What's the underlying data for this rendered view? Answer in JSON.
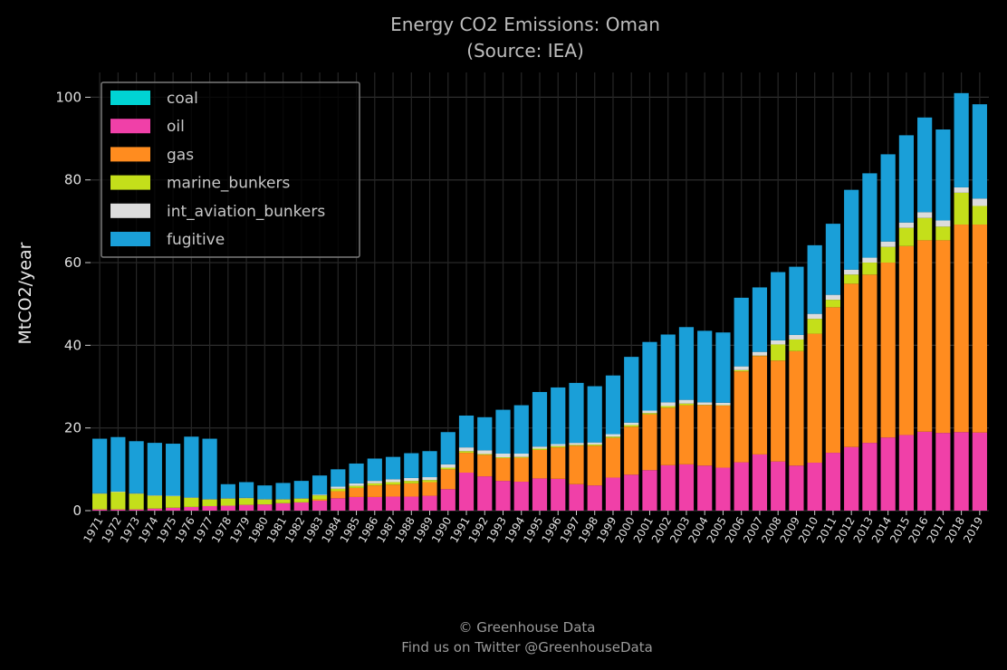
{
  "chart_data": {
    "type": "bar",
    "stacked": true,
    "title": "Energy CO2 Emissions: Oman",
    "subtitle": "(Source: IEA)",
    "xlabel": "",
    "ylabel": "MtCO2/year",
    "ylim": [
      0,
      106
    ],
    "yticks": [
      0,
      20,
      40,
      60,
      80,
      100
    ],
    "grid": true,
    "legend_position": "top-left",
    "categories": [
      "1971",
      "1972",
      "1973",
      "1974",
      "1975",
      "1976",
      "1977",
      "1978",
      "1979",
      "1980",
      "1981",
      "1982",
      "1983",
      "1984",
      "1985",
      "1986",
      "1987",
      "1988",
      "1989",
      "1990",
      "1991",
      "1992",
      "1993",
      "1994",
      "1995",
      "1996",
      "1997",
      "1998",
      "1999",
      "2000",
      "2001",
      "2002",
      "2003",
      "2004",
      "2005",
      "2006",
      "2007",
      "2008",
      "2009",
      "2010",
      "2011",
      "2012",
      "2013",
      "2014",
      "2015",
      "2016",
      "2017",
      "2018",
      "2019"
    ],
    "series": [
      {
        "name": "coal",
        "color": "#00d4d4",
        "values": [
          0,
          0,
          0,
          0,
          0,
          0,
          0,
          0,
          0,
          0,
          0,
          0,
          0,
          0,
          0,
          0,
          0,
          0,
          0,
          0,
          0,
          0,
          0,
          0,
          0,
          0,
          0,
          0,
          0,
          0,
          0,
          0,
          0,
          0,
          0,
          0,
          0,
          0,
          0,
          0,
          0,
          0,
          0,
          0,
          0,
          0,
          0,
          0,
          0
        ]
      },
      {
        "name": "oil",
        "color": "#f040a8",
        "values": [
          0.3,
          0.3,
          0.3,
          0.5,
          0.7,
          0.9,
          1.1,
          1.2,
          1.4,
          1.5,
          1.8,
          2.0,
          2.4,
          3.0,
          3.3,
          3.3,
          3.4,
          3.4,
          3.6,
          5.2,
          9.2,
          8.3,
          7.2,
          7.0,
          7.8,
          7.7,
          6.4,
          6.1,
          8.0,
          8.7,
          9.8,
          11.0,
          11.2,
          10.9,
          10.4,
          11.7,
          13.6,
          11.9,
          10.9,
          11.6,
          14.0,
          15.4,
          16.4,
          17.7,
          18.3,
          19.1,
          18.8,
          19.0,
          18.9
        ]
      },
      {
        "name": "gas",
        "color": "#ff8c1f",
        "values": [
          0,
          0,
          0,
          0,
          0,
          0,
          0,
          0,
          0,
          0,
          0,
          0,
          0.3,
          1.7,
          2.2,
          2.8,
          2.9,
          3.2,
          3.3,
          4.8,
          4.8,
          5.2,
          5.5,
          5.8,
          6.9,
          7.6,
          9.3,
          9.6,
          9.6,
          11.6,
          13.5,
          13.9,
          14.3,
          14.6,
          15.0,
          22.0,
          23.8,
          24.4,
          27.7,
          31.2,
          35.2,
          39.5,
          40.7,
          42.3,
          45.7,
          46.3,
          46.6,
          50.2,
          50.3
        ]
      },
      {
        "name": "marine_bunkers",
        "color": "#c4df1a",
        "values": [
          3.8,
          4.2,
          3.8,
          3.1,
          2.8,
          2.2,
          1.6,
          1.7,
          1.6,
          1.2,
          0.9,
          0.9,
          1.0,
          0.6,
          0.5,
          0.5,
          0.6,
          0.6,
          0.5,
          0.4,
          0.4,
          0.2,
          0.2,
          0.2,
          0.3,
          0.3,
          0.2,
          0.3,
          0.3,
          0.4,
          0.3,
          0.4,
          0.4,
          0.1,
          0.1,
          0.3,
          0.1,
          3.9,
          2.8,
          3.6,
          1.8,
          2.2,
          2.9,
          3.8,
          4.4,
          5.4,
          3.3,
          7.7,
          4.5
        ]
      },
      {
        "name": "int_aviation_bunkers",
        "color": "#dcdcdc",
        "values": [
          0.1,
          0.1,
          0.1,
          0.1,
          0.1,
          0.1,
          0.1,
          0.1,
          0.1,
          0.1,
          0.1,
          0.1,
          0.2,
          0.5,
          0.6,
          0.6,
          0.7,
          0.7,
          0.7,
          0.8,
          0.9,
          0.9,
          0.9,
          0.8,
          0.5,
          0.5,
          0.5,
          0.5,
          0.6,
          0.6,
          0.6,
          0.9,
          0.9,
          0.6,
          0.6,
          0.9,
          0.9,
          1.0,
          1.1,
          1.2,
          1.2,
          1.2,
          1.2,
          1.3,
          1.3,
          1.4,
          1.5,
          1.3,
          1.8
        ]
      },
      {
        "name": "fugitive",
        "color": "#1a9fd8",
        "values": [
          13.2,
          13.2,
          12.6,
          12.7,
          12.6,
          14.7,
          14.6,
          3.4,
          3.8,
          3.3,
          3.9,
          4.2,
          4.6,
          4.2,
          4.8,
          5.4,
          5.4,
          6.0,
          6.3,
          7.8,
          7.7,
          8.0,
          10.6,
          11.7,
          13.2,
          13.7,
          14.5,
          13.6,
          14.2,
          15.9,
          16.6,
          16.4,
          17.6,
          17.3,
          17.0,
          16.6,
          15.6,
          16.5,
          16.5,
          16.6,
          17.2,
          19.3,
          20.4,
          21.1,
          21.1,
          22.9,
          22.0,
          22.8,
          22.8
        ]
      }
    ]
  },
  "footer": {
    "line1": "© Greenhouse Data",
    "line2": "Find us on Twitter @GreenhouseData"
  }
}
